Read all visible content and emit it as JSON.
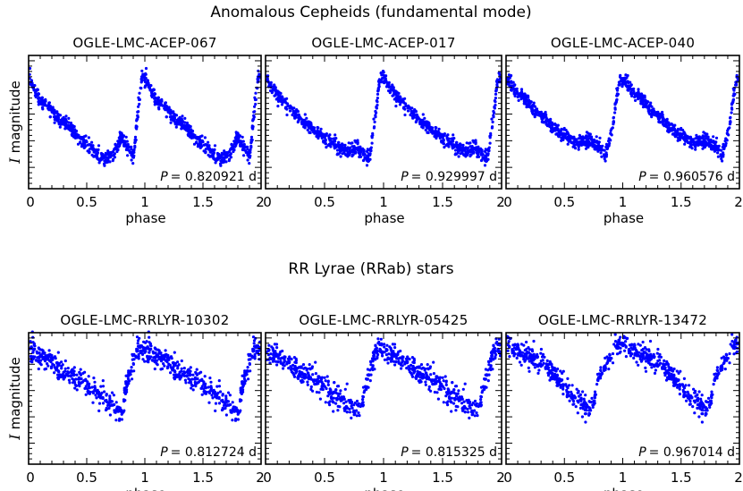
{
  "chart_data": [
    {
      "type": "scatter",
      "group_title": "Anomalous Cepheids (fundamental mode)",
      "title": "OGLE-LMC-ACEP-067",
      "xlabel": "phase",
      "ylabel_symbol": "I",
      "ylabel": "magnitude",
      "xlim": [
        0,
        2
      ],
      "xticks": [
        "0",
        "0.5",
        "1",
        "1.5",
        "2"
      ],
      "y_inverted": true,
      "period_symbol": "P",
      "period_text": "= 0.820921 d",
      "color": "#0000ff",
      "light_curve_phase": [
        0,
        0.1,
        0.3,
        0.5,
        0.65,
        0.72,
        0.8,
        0.85,
        0.9,
        0.95,
        0.98,
        1.0
      ],
      "light_curve_relative_mag": [
        0.17,
        0.33,
        0.5,
        0.67,
        0.78,
        0.74,
        0.62,
        0.68,
        0.77,
        0.35,
        0.15,
        0.17
      ],
      "scatter": 0.025
    },
    {
      "type": "scatter",
      "title": "OGLE-LMC-ACEP-017",
      "xlabel": "phase",
      "xlim": [
        0,
        2
      ],
      "xticks": [
        "0",
        "0.5",
        "1",
        "1.5",
        "2"
      ],
      "y_inverted": true,
      "period_symbol": "P",
      "period_text": "= 0.929997 d",
      "color": "#0000ff",
      "light_curve_phase": [
        0,
        0.1,
        0.3,
        0.5,
        0.7,
        0.78,
        0.82,
        0.88,
        0.93,
        0.97,
        1.0
      ],
      "light_curve_relative_mag": [
        0.17,
        0.3,
        0.47,
        0.62,
        0.73,
        0.69,
        0.73,
        0.78,
        0.45,
        0.17,
        0.17
      ],
      "scatter": 0.025
    },
    {
      "type": "scatter",
      "title": "OGLE-LMC-ACEP-040",
      "xlabel": "phase",
      "xlim": [
        0,
        2
      ],
      "xticks": [
        "0",
        "0.5",
        "1",
        "1.5",
        "2"
      ],
      "y_inverted": true,
      "period_symbol": "P",
      "period_text": "= 0.960576 d",
      "color": "#0000ff",
      "light_curve_phase": [
        0,
        0.1,
        0.3,
        0.5,
        0.6,
        0.72,
        0.8,
        0.85,
        0.9,
        0.95,
        0.98,
        1.0
      ],
      "light_curve_relative_mag": [
        0.18,
        0.28,
        0.45,
        0.6,
        0.65,
        0.64,
        0.68,
        0.75,
        0.6,
        0.3,
        0.17,
        0.18
      ],
      "scatter": 0.025
    },
    {
      "type": "scatter",
      "group_title": "RR Lyrae (RRab) stars",
      "title": "OGLE-LMC-RRLYR-10302",
      "xlabel": "phase",
      "ylabel_symbol": "I",
      "ylabel": "magnitude",
      "xlim": [
        0,
        2
      ],
      "xticks": [
        "0",
        "0.5",
        "1",
        "1.5",
        "2"
      ],
      "y_inverted": true,
      "period_symbol": "P",
      "period_text": "= 0.812724 d",
      "color": "#0000ff",
      "light_curve_phase": [
        0,
        0.15,
        0.4,
        0.6,
        0.75,
        0.8,
        0.85,
        0.92,
        0.97,
        1.0
      ],
      "light_curve_relative_mag": [
        0.13,
        0.2,
        0.35,
        0.47,
        0.58,
        0.6,
        0.35,
        0.15,
        0.1,
        0.13
      ],
      "scatter": 0.045
    },
    {
      "type": "scatter",
      "title": "OGLE-LMC-RRLYR-05425",
      "xlabel": "phase",
      "xlim": [
        0,
        2
      ],
      "xticks": [
        "0",
        "0.5",
        "1",
        "1.5",
        "2"
      ],
      "y_inverted": true,
      "period_symbol": "P",
      "period_text": "= 0.815325 d",
      "color": "#0000ff",
      "light_curve_phase": [
        0,
        0.15,
        0.4,
        0.6,
        0.75,
        0.8,
        0.86,
        0.93,
        0.98,
        1.0
      ],
      "light_curve_relative_mag": [
        0.14,
        0.2,
        0.35,
        0.47,
        0.58,
        0.61,
        0.35,
        0.15,
        0.1,
        0.14
      ],
      "scatter": 0.045
    },
    {
      "type": "scatter",
      "title": "OGLE-LMC-RRLYR-13472",
      "xlabel": "phase",
      "xlim": [
        0,
        2
      ],
      "xticks": [
        "0",
        "0.5",
        "1",
        "1.5",
        "2"
      ],
      "y_inverted": true,
      "period_symbol": "P",
      "period_text": "= 0.967014 d",
      "color": "#0000ff",
      "light_curve_phase": [
        0,
        0.15,
        0.3,
        0.45,
        0.6,
        0.7,
        0.75,
        0.8,
        0.88,
        0.95,
        1.0
      ],
      "light_curve_relative_mag": [
        0.1,
        0.17,
        0.22,
        0.36,
        0.5,
        0.58,
        0.52,
        0.33,
        0.22,
        0.1,
        0.1
      ],
      "scatter": 0.04
    }
  ]
}
